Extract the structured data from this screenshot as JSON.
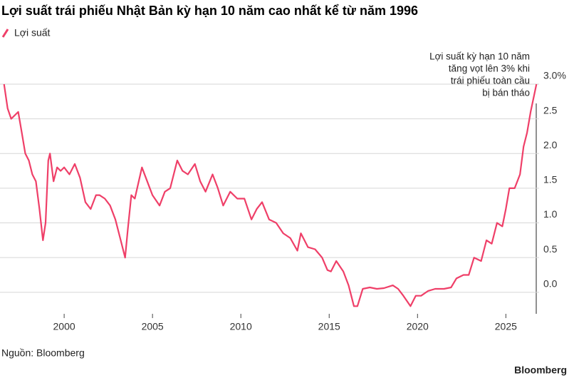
{
  "chart_data": {
    "type": "line",
    "title": "Lợi suất trái phiếu Nhật Bản kỳ hạn 10 năm cao nhất kể từ năm 1996",
    "annotation": [
      "Lợi suất kỳ hạn 10 năm",
      "tăng vọt lên 3% khi",
      "trái phiếu toàn cầu",
      "bị bán tháo"
    ],
    "source": "Nguồn: Bloomberg",
    "brand": "Bloomberg",
    "xlim": [
      1996.57,
      2026.8
    ],
    "xticks": [
      2000,
      2005,
      2010,
      2015,
      2020,
      2025
    ],
    "ylim": [
      -0.3,
      3.0
    ],
    "yticks": [
      {
        "value": 0,
        "label": "0.0"
      },
      0.5,
      {
        "value": 1,
        "label": "1.0"
      },
      1.5,
      {
        "value": 2,
        "label": "2.0"
      },
      2.5,
      {
        "value": 3,
        "label": "3.0%"
      }
    ],
    "grid": true,
    "legend": "top-left",
    "series": [
      {
        "name": "Lợi suất",
        "color": "#ef3f68",
        "x": [
          1996.6,
          1996.8,
          1997.0,
          1997.2,
          1997.4,
          1997.6,
          1997.8,
          1998.0,
          1998.2,
          1998.4,
          1998.6,
          1998.8,
          1998.95,
          1999.1,
          1999.2,
          1999.4,
          1999.6,
          1999.8,
          2000.0,
          2000.3,
          2000.6,
          2000.9,
          2001.2,
          2001.5,
          2001.8,
          2002.0,
          2002.3,
          2002.6,
          2002.9,
          2003.2,
          2003.45,
          2003.6,
          2003.8,
          2004.0,
          2004.4,
          2004.7,
          2005.0,
          2005.4,
          2005.7,
          2006.0,
          2006.4,
          2006.7,
          2007.0,
          2007.4,
          2007.7,
          2008.0,
          2008.4,
          2008.7,
          2009.0,
          2009.4,
          2009.8,
          2010.2,
          2010.6,
          2010.9,
          2011.2,
          2011.6,
          2012.0,
          2012.4,
          2012.8,
          2013.2,
          2013.4,
          2013.8,
          2014.2,
          2014.6,
          2014.9,
          2015.1,
          2015.4,
          2015.8,
          2016.1,
          2016.4,
          2016.6,
          2016.9,
          2017.3,
          2017.7,
          2018.1,
          2018.6,
          2018.9,
          2019.2,
          2019.6,
          2019.9,
          2020.2,
          2020.6,
          2021.0,
          2021.5,
          2021.9,
          2022.2,
          2022.6,
          2022.9,
          2023.2,
          2023.6,
          2023.9,
          2024.2,
          2024.5,
          2024.8,
          2025.0,
          2025.2,
          2025.5,
          2025.8,
          2026.0,
          2026.2,
          2026.4,
          2026.73
        ],
        "values": [
          3.0,
          2.65,
          2.5,
          2.55,
          2.6,
          2.3,
          2.0,
          1.9,
          1.7,
          1.6,
          1.2,
          0.75,
          1.0,
          1.9,
          2.0,
          1.6,
          1.8,
          1.75,
          1.8,
          1.7,
          1.85,
          1.65,
          1.3,
          1.2,
          1.4,
          1.4,
          1.35,
          1.25,
          1.05,
          0.75,
          0.5,
          0.9,
          1.4,
          1.35,
          1.8,
          1.6,
          1.4,
          1.25,
          1.45,
          1.5,
          1.9,
          1.75,
          1.7,
          1.85,
          1.6,
          1.45,
          1.7,
          1.5,
          1.25,
          1.45,
          1.35,
          1.35,
          1.05,
          1.2,
          1.3,
          1.05,
          1.0,
          0.85,
          0.78,
          0.6,
          0.85,
          0.65,
          0.62,
          0.5,
          0.32,
          0.3,
          0.45,
          0.3,
          0.1,
          -0.2,
          -0.2,
          0.05,
          0.07,
          0.05,
          0.06,
          0.1,
          0.05,
          -0.05,
          -0.2,
          -0.05,
          -0.05,
          0.02,
          0.05,
          0.05,
          0.07,
          0.2,
          0.25,
          0.25,
          0.5,
          0.45,
          0.75,
          0.7,
          1.0,
          0.95,
          1.2,
          1.5,
          1.5,
          1.7,
          2.1,
          2.3,
          2.6,
          3.0
        ]
      }
    ]
  }
}
